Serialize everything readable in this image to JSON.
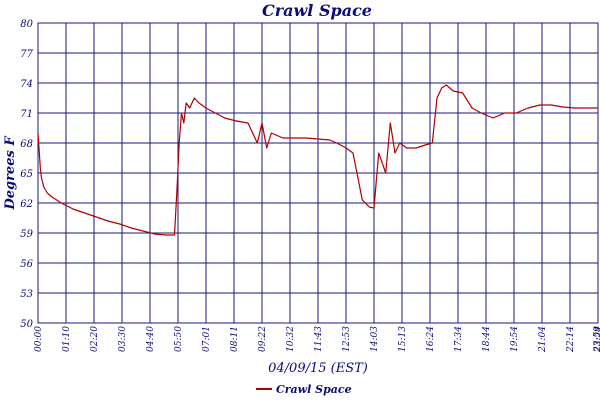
{
  "chart_data": {
    "type": "line",
    "title": "Crawl Space",
    "xlabel": "04/09/15 (EST)",
    "ylabel": "Degrees F",
    "ylim": [
      50,
      80
    ],
    "yticks": [
      "50",
      "53",
      "56",
      "59",
      "62",
      "65",
      "68",
      "71",
      "74",
      "77",
      "80"
    ],
    "xticks": [
      "00:00",
      "01:10",
      "02:20",
      "03:30",
      "04:40",
      "05:50",
      "07:01",
      "08:11",
      "09:22",
      "10:32",
      "11:43",
      "12:53",
      "14:03",
      "15:13",
      "16:24",
      "17:34",
      "18:44",
      "19:54",
      "21:04",
      "22:14",
      "23:24",
      "23:59"
    ],
    "grid": true,
    "legend_position": "bottom-center",
    "colors": {
      "series": "#b00000",
      "grid": "#1a1a80",
      "text": "#0a0a7a"
    },
    "series": [
      {
        "name": "Crawl Space",
        "x": [
          0,
          0.05,
          0.1,
          0.15,
          0.25,
          0.4,
          0.6,
          0.8,
          1.0,
          1.5,
          2.0,
          2.5,
          3.0,
          3.5,
          4.0,
          4.5,
          5.0,
          5.5,
          5.85,
          5.95,
          6.05,
          6.15,
          6.25,
          6.35,
          6.5,
          6.7,
          6.9,
          7.2,
          7.6,
          8.0,
          8.5,
          9.0,
          9.4,
          9.6,
          9.8,
          10.0,
          10.5,
          11.0,
          11.5,
          12.0,
          12.5,
          12.8,
          13.2,
          13.5,
          13.9,
          14.2,
          14.4,
          14.6,
          14.9,
          15.1,
          15.3,
          15.5,
          15.8,
          16.2,
          16.6,
          16.9,
          17.1,
          17.3,
          17.5,
          17.8,
          18.2,
          18.6,
          19.0,
          19.5,
          20.0,
          20.5,
          21.0,
          21.5,
          22.0,
          22.5,
          23.0,
          23.5,
          23.8,
          24.0
        ],
        "y": [
          69,
          67.2,
          65.5,
          64.5,
          63.6,
          63.0,
          62.6,
          62.3,
          62.0,
          61.4,
          61.0,
          60.6,
          60.2,
          59.9,
          59.5,
          59.2,
          58.9,
          58.8,
          58.8,
          63,
          68,
          71,
          70,
          72,
          71.5,
          72.5,
          72,
          71.5,
          71,
          70.5,
          70.2,
          70,
          68,
          70,
          67.5,
          69,
          68.5,
          68.5,
          68.5,
          68.4,
          68.3,
          68,
          67.5,
          67,
          62.3,
          61.6,
          61.5,
          67,
          65,
          70,
          67,
          68,
          67.5,
          67.5,
          67.8,
          68,
          72.5,
          73.5,
          73.8,
          73.2,
          73,
          71.5,
          71,
          70.5,
          71,
          71,
          71.5,
          71.8,
          71.8,
          71.6,
          71.5,
          71.5,
          71.5,
          71.5
        ]
      }
    ]
  }
}
